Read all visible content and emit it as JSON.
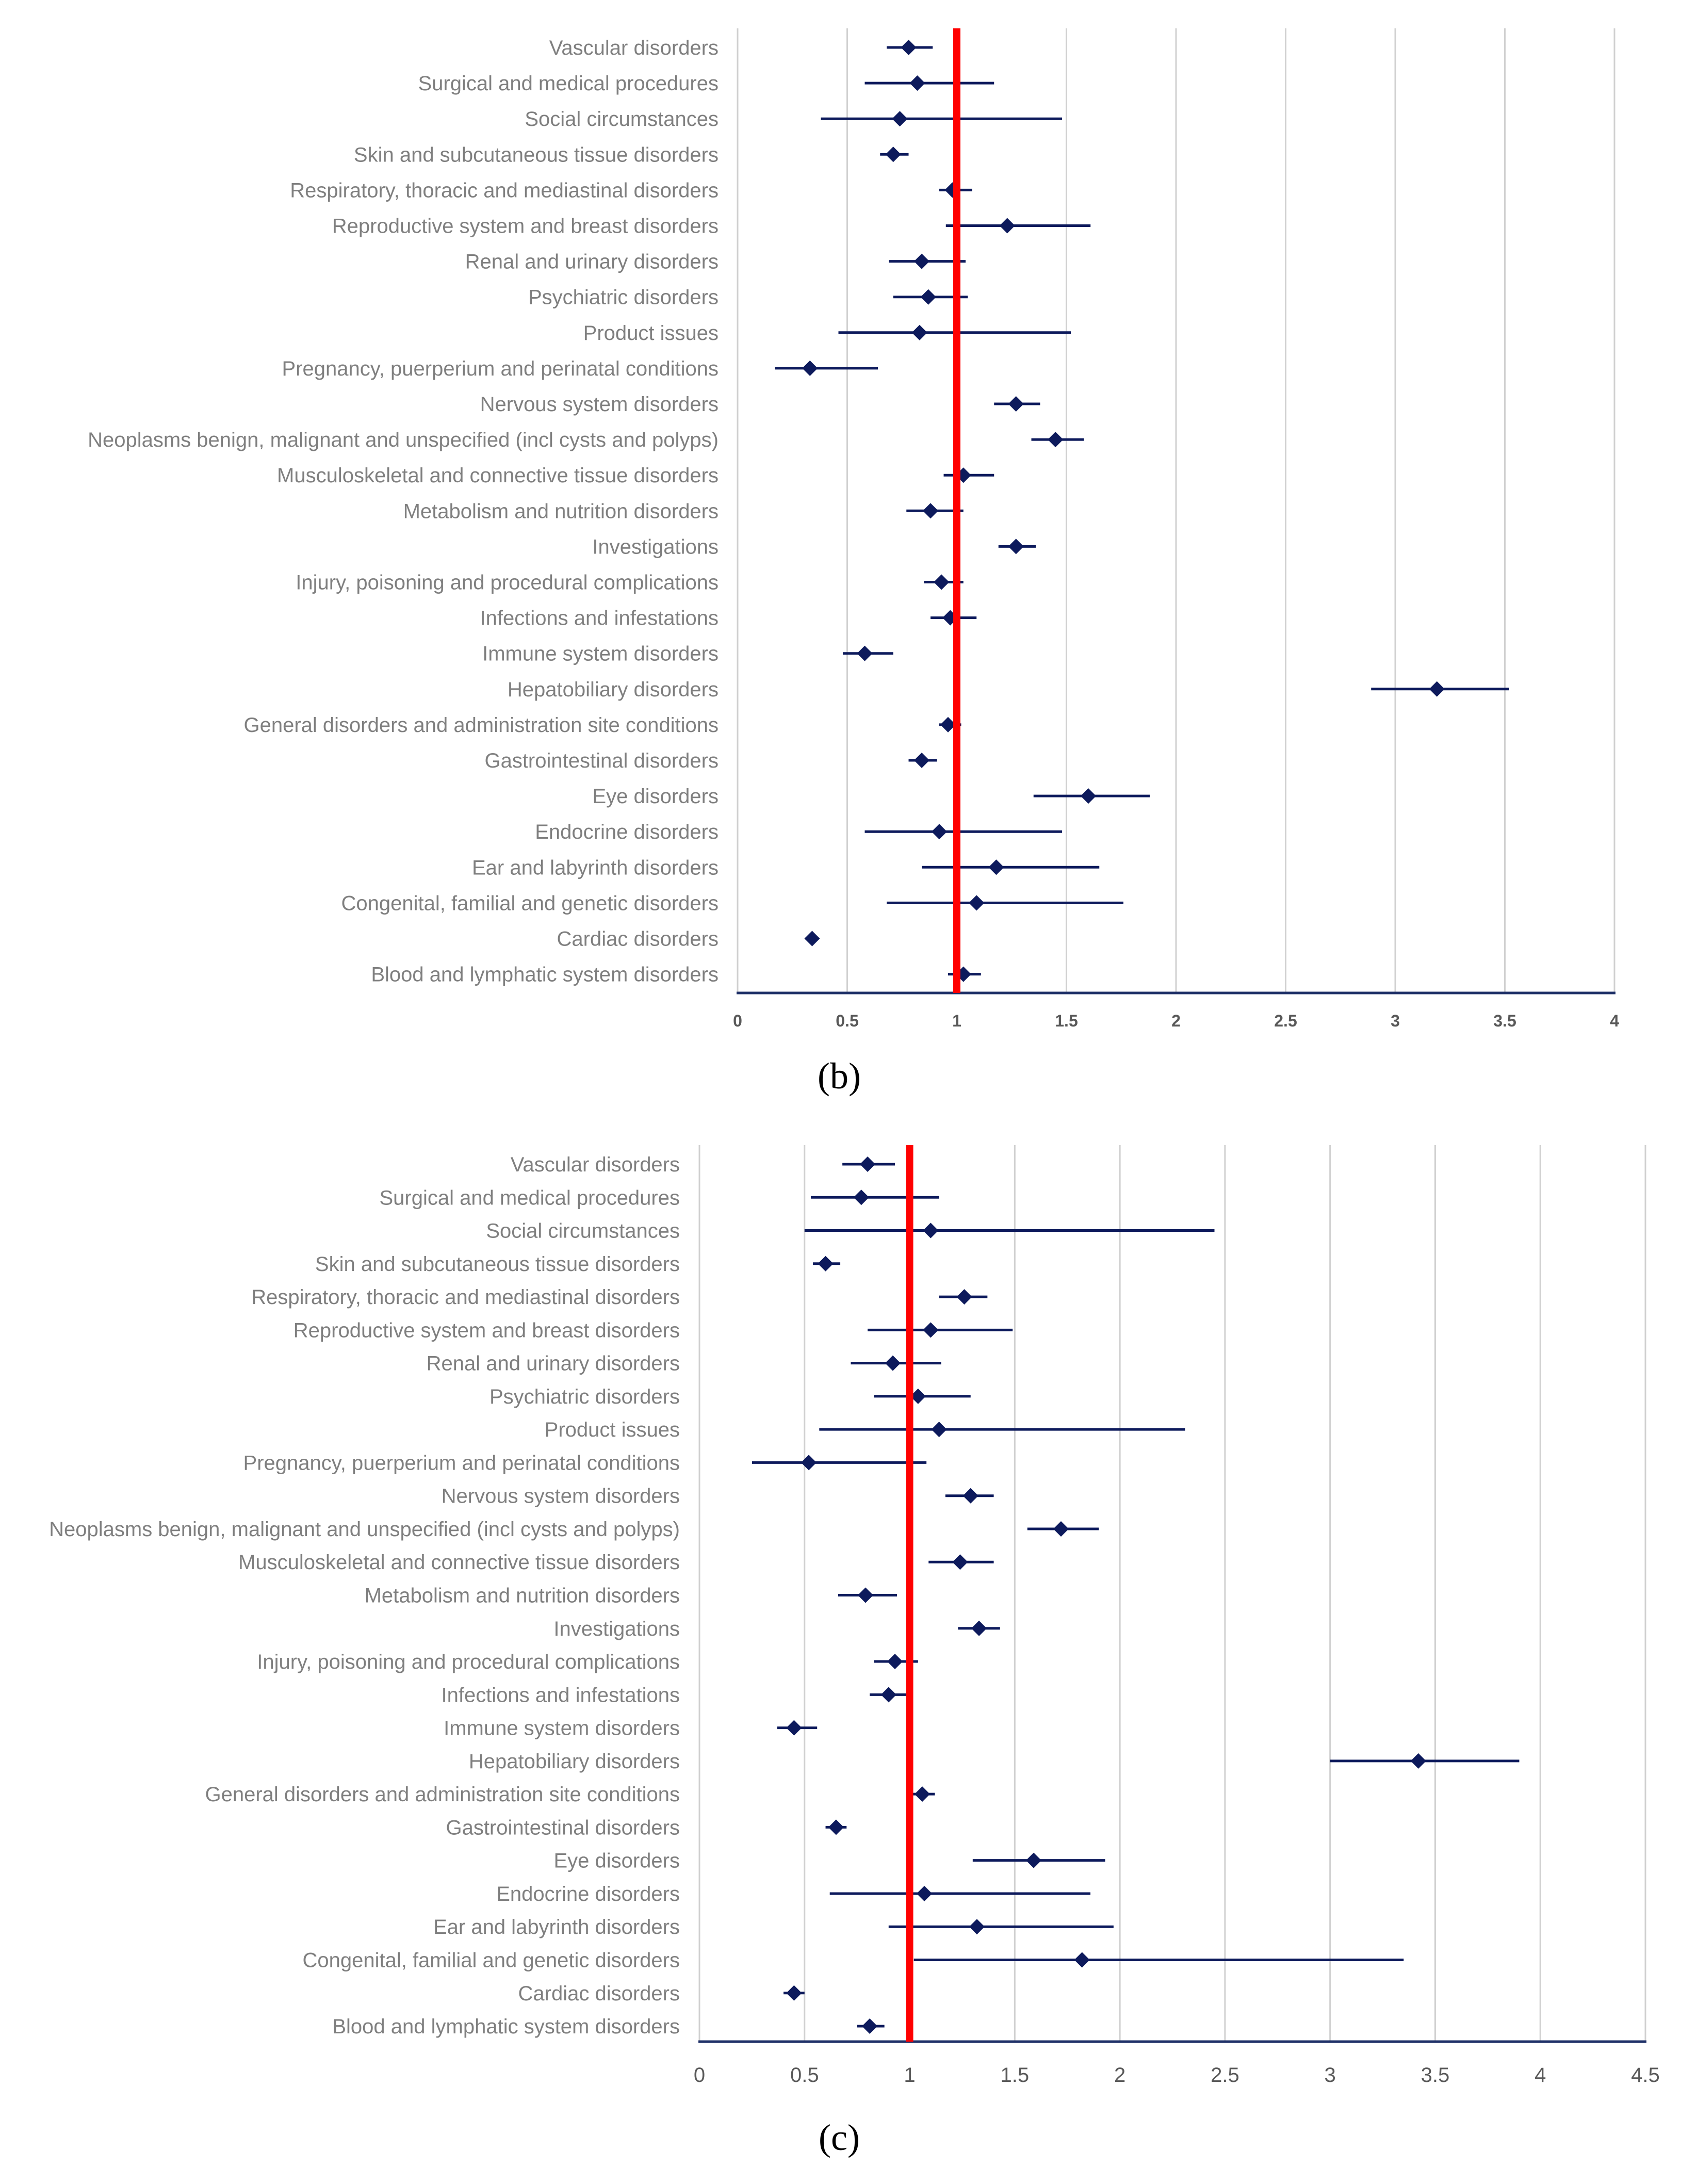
{
  "colors": {
    "marker": "#0d1a5c",
    "reference_line": "#ff0000",
    "grid": "#d0d0d0",
    "axis": "#1f3168",
    "category_text": "#7f7f7f",
    "tick_text": "#595959"
  },
  "chart_data": [
    {
      "id": "b",
      "type": "forest",
      "panel_label": "b",
      "xlim": [
        0,
        4
      ],
      "xticks": [
        "0",
        "0.5",
        "1",
        "1.5",
        "2",
        "2.5",
        "3",
        "3.5",
        "4"
      ],
      "reference_line": 1,
      "categories": [
        "Vascular disorders",
        "Surgical and medical procedures",
        "Social circumstances",
        "Skin and subcutaneous tissue disorders",
        "Respiratory, thoracic and mediastinal disorders",
        "Reproductive system and breast disorders",
        "Renal and urinary disorders",
        "Psychiatric disorders",
        "Product issues",
        "Pregnancy, puerperium and perinatal conditions",
        "Nervous system disorders",
        "Neoplasms benign, malignant and unspecified (incl cysts and polyps)",
        "Musculoskeletal and connective tissue disorders",
        "Metabolism and nutrition disorders",
        "Investigations",
        "Injury, poisoning and procedural complications",
        "Infections and infestations",
        "Immune system disorders",
        "Hepatobiliary disorders",
        "General disorders and administration site conditions",
        "Gastrointestinal disorders",
        "Eye disorders",
        "Endocrine disorders",
        "Ear and labyrinth disorders",
        "Congenital, familial and genetic disorders",
        "Cardiac disorders",
        "Blood and lymphatic system disorders"
      ],
      "estimate": [
        0.78,
        0.82,
        0.74,
        0.71,
        0.98,
        1.23,
        0.84,
        0.87,
        0.83,
        0.33,
        1.27,
        1.45,
        1.03,
        0.88,
        1.27,
        0.93,
        0.97,
        0.58,
        3.19,
        0.96,
        0.84,
        1.6,
        0.92,
        1.18,
        1.09,
        0.34,
        1.03
      ],
      "lower": [
        0.68,
        0.58,
        0.38,
        0.65,
        0.92,
        0.95,
        0.69,
        0.71,
        0.46,
        0.17,
        1.17,
        1.34,
        0.94,
        0.77,
        1.19,
        0.85,
        0.88,
        0.48,
        2.89,
        0.92,
        0.78,
        1.35,
        0.58,
        0.84,
        0.68,
        0.31,
        0.96
      ],
      "upper": [
        0.89,
        1.17,
        1.48,
        0.78,
        1.07,
        1.61,
        1.04,
        1.05,
        1.52,
        0.64,
        1.38,
        1.58,
        1.17,
        1.03,
        1.36,
        1.03,
        1.09,
        0.71,
        3.52,
        1.02,
        0.91,
        1.88,
        1.48,
        1.65,
        1.76,
        0.37,
        1.11
      ]
    },
    {
      "id": "c",
      "type": "forest",
      "panel_label": "c",
      "xlim": [
        0,
        4.5
      ],
      "xticks": [
        "0",
        "0.5",
        "1",
        "1.5",
        "2",
        "2.5",
        "3",
        "3.5",
        "4",
        "4.5"
      ],
      "reference_line": 1,
      "categories": [
        "Vascular disorders",
        "Surgical and medical procedures",
        "Social circumstances",
        "Skin and subcutaneous tissue disorders",
        "Respiratory, thoracic and mediastinal disorders",
        "Reproductive system and breast disorders",
        "Renal and urinary disorders",
        "Psychiatric disorders",
        "Product issues",
        "Pregnancy, puerperium and perinatal conditions",
        "Nervous system disorders",
        "Neoplasms benign, malignant and unspecified (incl cysts and polyps)",
        "Musculoskeletal and connective tissue disorders",
        "Metabolism and nutrition disorders",
        "Investigations",
        "Injury, poisoning and procedural complications",
        "Infections and infestations",
        "Immune system disorders",
        "Hepatobiliary disorders",
        "General disorders and administration site conditions",
        "Gastrointestinal disorders",
        "Eye disorders",
        "Endocrine disorders",
        "Ear and labyrinth disorders",
        "Congenital, familial and genetic disorders",
        "Cardiac disorders",
        "Blood and lymphatic system disorders"
      ],
      "estimate": [
        0.8,
        0.77,
        1.1,
        0.6,
        1.26,
        1.1,
        0.92,
        1.04,
        1.14,
        0.52,
        1.29,
        1.72,
        1.24,
        0.79,
        1.33,
        0.93,
        0.9,
        0.45,
        3.42,
        1.06,
        0.65,
        1.59,
        1.07,
        1.32,
        1.82,
        0.45,
        0.81
      ],
      "lower": [
        0.68,
        0.53,
        0.5,
        0.54,
        1.14,
        0.8,
        0.72,
        0.83,
        0.57,
        0.25,
        1.17,
        1.56,
        1.09,
        0.66,
        1.23,
        0.83,
        0.81,
        0.37,
        3.0,
        1.01,
        0.6,
        1.3,
        0.62,
        0.9,
        1.02,
        0.4,
        0.75
      ],
      "upper": [
        0.93,
        1.14,
        2.45,
        0.67,
        1.37,
        1.49,
        1.15,
        1.29,
        2.31,
        1.08,
        1.4,
        1.9,
        1.4,
        0.94,
        1.43,
        1.04,
        0.99,
        0.56,
        3.9,
        1.12,
        0.7,
        1.93,
        1.86,
        1.97,
        3.35,
        0.5,
        0.88
      ]
    }
  ]
}
